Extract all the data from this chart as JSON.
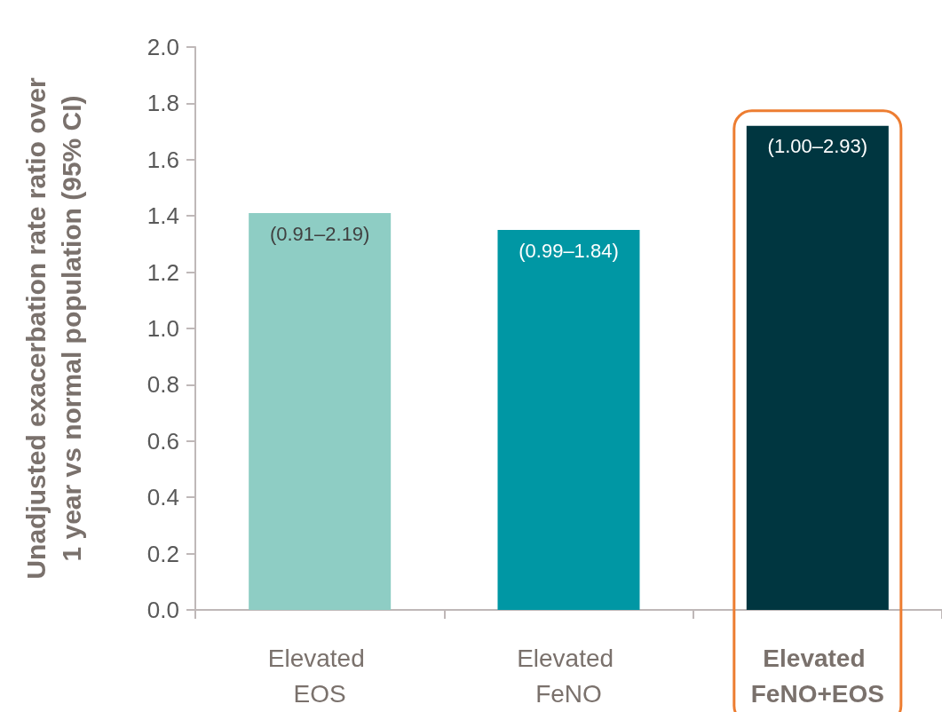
{
  "chart_data": {
    "type": "bar",
    "ylabel": "Unadjusted exacerbation rate ratio over 1 year vs normal population (95% CI)",
    "categories": [
      "Elevated EOS",
      "Elevated FeNO",
      "Elevated FeNO+EOS"
    ],
    "values": [
      1.41,
      1.35,
      1.72
    ],
    "colors": [
      "#8ecdc4",
      "#0097a4",
      "#003640"
    ],
    "value_labels": [
      "(0.91–2.19)",
      "(0.99–1.84)",
      "(1.00–2.93)"
    ],
    "ylim": [
      0,
      2
    ],
    "yticks": [
      {
        "value": 0,
        "label": "0.0"
      },
      {
        "value": 0.2,
        "label": "0.2"
      },
      {
        "value": 0.4,
        "label": "0.4"
      },
      {
        "value": 0.6,
        "label": "0.6"
      },
      {
        "value": 0.8,
        "label": "0.8"
      },
      {
        "value": 1,
        "label": "1.0"
      },
      {
        "value": 1.2,
        "label": "1.2"
      },
      {
        "value": 1.4,
        "label": "1.4"
      },
      {
        "value": 1.6,
        "label": "1.6"
      },
      {
        "value": 1.8,
        "label": "1.8"
      },
      {
        "value": 2,
        "label": "2.0"
      }
    ],
    "grid": false
  }
}
